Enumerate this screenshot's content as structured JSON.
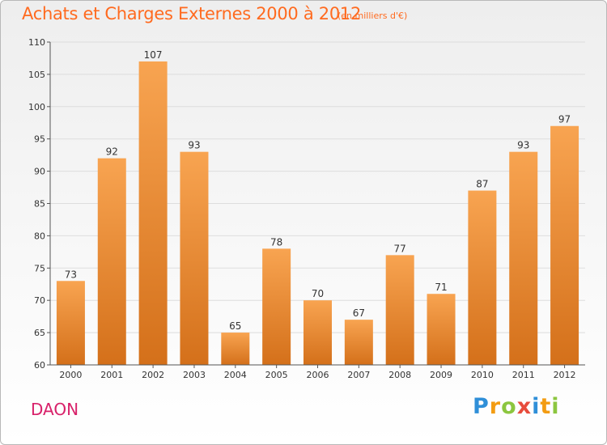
{
  "title": "Achats et Charges Externes 2000 à 2012",
  "subtitle": "(en milliers d'€)",
  "commune": "DAON",
  "brand": {
    "letters": [
      "P",
      "r",
      "o",
      "x",
      "i",
      "t",
      "i"
    ],
    "colors": [
      "#2f8fd8",
      "#f39c12",
      "#8cc63f",
      "#e74c3c",
      "#2f8fd8",
      "#f39c12",
      "#8cc63f"
    ]
  },
  "colors": {
    "bar_top": "#f8a451",
    "bar_bottom": "#d4701a",
    "text_accent": "#ff6a1f",
    "commune": "#d8216a"
  },
  "chart_data": {
    "type": "bar",
    "categories": [
      "2000",
      "2001",
      "2002",
      "2003",
      "2004",
      "2005",
      "2006",
      "2007",
      "2008",
      "2009",
      "2010",
      "2011",
      "2012"
    ],
    "values": [
      73,
      92,
      107,
      93,
      65,
      78,
      70,
      67,
      77,
      71,
      87,
      93,
      97
    ],
    "ylim": [
      60,
      110
    ],
    "yticks": [
      60,
      65,
      70,
      75,
      80,
      85,
      90,
      95,
      100,
      105,
      110
    ],
    "grid": true
  }
}
